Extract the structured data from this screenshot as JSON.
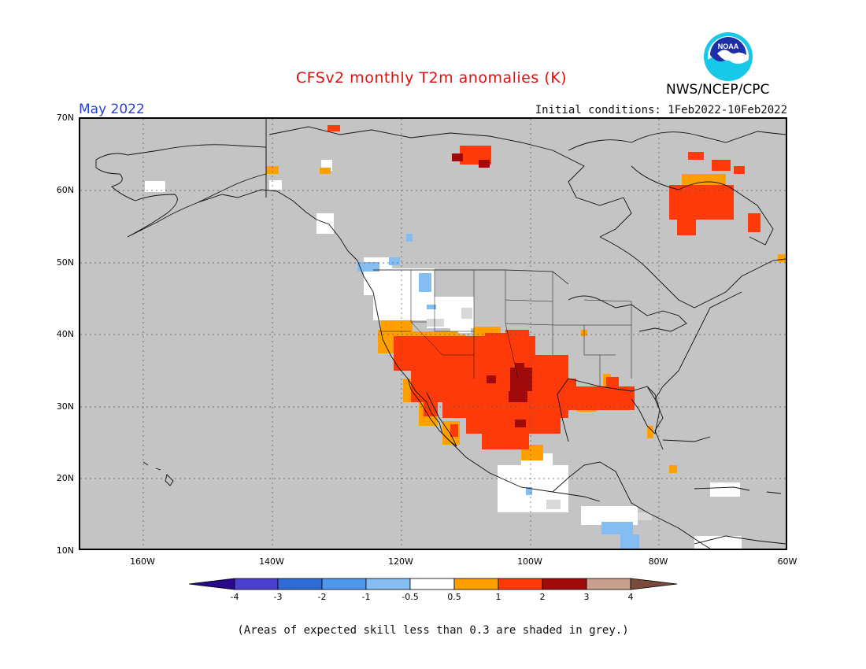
{
  "title": "CFSv2 monthly T2m anomalies (K)",
  "agency": "NWS/NCEP/CPC",
  "logo_text": "NOAA",
  "period": "May 2022",
  "initial_conditions": "Initial conditions: 1Feb2022-10Feb2022",
  "map": {
    "lon_range": [
      -170,
      -60
    ],
    "lat_range": [
      10,
      70
    ],
    "lat_ticks": [
      "70N",
      "60N",
      "50N",
      "40N",
      "30N",
      "20N",
      "10N"
    ],
    "lon_ticks": [
      "160W",
      "140W",
      "120W",
      "100W",
      "80W",
      "60W"
    ],
    "background_color": "#c4c4c4",
    "gridlines": "dotted"
  },
  "colorbar": {
    "labels": [
      "-4",
      "-3",
      "-2",
      "-1",
      "-0.5",
      "0.5",
      "1",
      "2",
      "3",
      "4"
    ],
    "colors": [
      "#2a0a8c",
      "#4a3fcf",
      "#2f6bd6",
      "#4f97ea",
      "#85bdf3",
      "#ffffff",
      "#ffa000",
      "#ff3a0a",
      "#a00a0a",
      "#c9a08e",
      "#7a4a3a"
    ]
  },
  "skill_note": "(Areas of expected skill less than 0.3 are shaded in grey.)"
}
